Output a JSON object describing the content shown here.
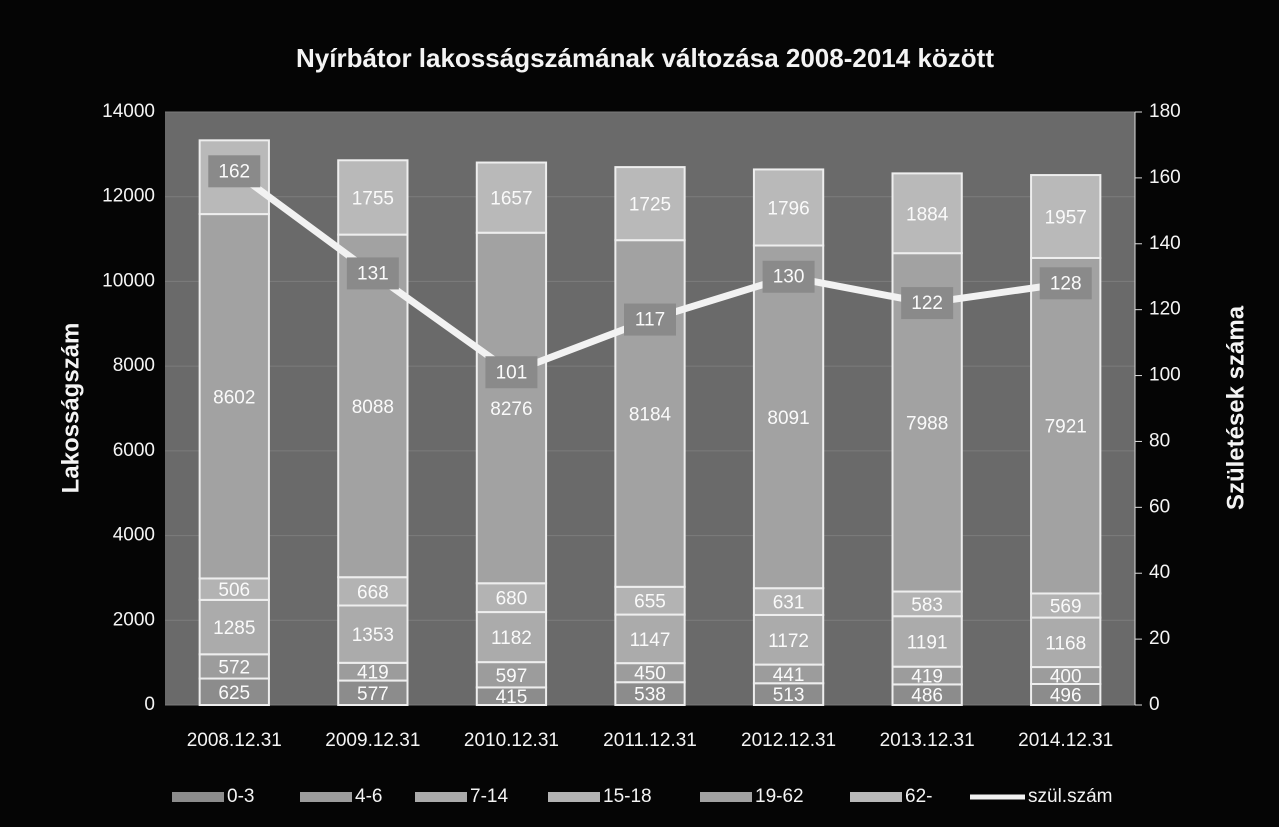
{
  "chart_data": {
    "type": "bar",
    "stacked": true,
    "title": "Nyírbátor lakosságszámának változása 2008-2014 között",
    "ylabel": "Lakosságszám",
    "y2label": "Születések száma",
    "categories": [
      "2008.12.31",
      "2009.12.31",
      "2010.12.31",
      "2011.12.31",
      "2012.12.31",
      "2013.12.31",
      "2014.12.31"
    ],
    "series": [
      {
        "name": "0-3",
        "color": "#8c8c8c",
        "type": "bar",
        "values": [
          625,
          577,
          415,
          538,
          513,
          486,
          496
        ]
      },
      {
        "name": "4-6",
        "color": "#9c9c9c",
        "type": "bar",
        "values": [
          572,
          419,
          597,
          450,
          441,
          419,
          400
        ]
      },
      {
        "name": "7-14",
        "color": "#ababab",
        "type": "bar",
        "values": [
          1285,
          1353,
          1182,
          1147,
          1172,
          1191,
          1168
        ]
      },
      {
        "name": "15-18",
        "color": "#b3b3b3",
        "type": "bar",
        "values": [
          506,
          668,
          680,
          655,
          631,
          583,
          569
        ]
      },
      {
        "name": "19-62",
        "color": "#a2a2a2",
        "type": "bar",
        "values": [
          8602,
          8088,
          8276,
          8184,
          8091,
          7988,
          7921
        ]
      },
      {
        "name": "62-",
        "color": "#b9b9b9",
        "type": "bar",
        "values": [
          1741,
          1755,
          1657,
          1725,
          1796,
          1884,
          1957
        ]
      },
      {
        "name": "szül.szám",
        "color": "#f2f2f2",
        "type": "line",
        "axis": "y2",
        "values": [
          162,
          131,
          101,
          117,
          130,
          122,
          128
        ]
      }
    ],
    "ylim": [
      0,
      14000
    ],
    "yticks": [
      0,
      2000,
      4000,
      6000,
      8000,
      10000,
      12000,
      14000
    ],
    "y2lim": [
      0,
      180
    ],
    "y2ticks": [
      0,
      20,
      40,
      60,
      80,
      100,
      120,
      140,
      160,
      180
    ],
    "grid": true,
    "legend": "bottom"
  }
}
